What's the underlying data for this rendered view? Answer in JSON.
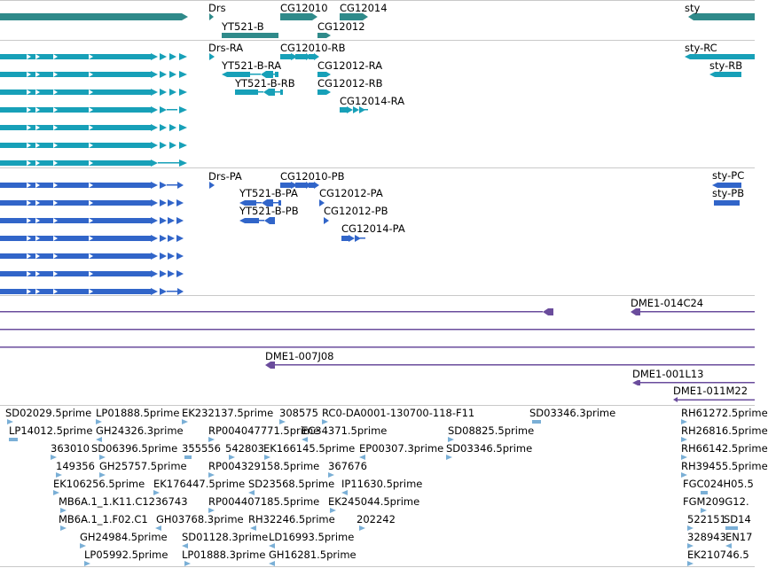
{
  "colors": {
    "gene": "#2f8a8a",
    "mrna": "#17a0b8",
    "protein": "#3165c9",
    "clone": "#6a4c9c",
    "est": "#7aafd6"
  },
  "genes": [
    "Drs",
    "YT521-B",
    "CG12010",
    "CG12012",
    "CG12014",
    "sty"
  ],
  "mrnas": [
    "Drs-RA",
    "YT521-B-RA",
    "YT521-B-RB",
    "CG12010-RB",
    "CG12012-RA",
    "CG12012-RB",
    "CG12014-RA",
    "sty-RC",
    "sty-RB"
  ],
  "proteins": [
    "Drs-PA",
    "YT521-B-PA",
    "YT521-B-PB",
    "CG12010-PB",
    "CG12012-PA",
    "CG12012-PB",
    "CG12014-PA",
    "sty-PC",
    "sty-PB"
  ],
  "clones": [
    "DME1-014C24",
    "DME1-007J08",
    "DME1-001L13",
    "DME1-011M22"
  ],
  "ests": [
    "SD02029.5prime",
    "LP01888.5prime",
    "EK232137.5prime",
    "308575",
    "RC0-DA0001-130700-118-F11",
    "SD03346.3prime",
    "RH61272.5prime",
    "LP14012.5prime",
    "GH24326.3prime",
    "RP004047771.5prime",
    "EC34371.5prime",
    "SD08825.5prime",
    "RH26816.5prime",
    "363010",
    "SD06396.5prime",
    "355556",
    "542803",
    "EK166145.5prime",
    "EP00307.3prime",
    "SD03346.5prime",
    "RH66142.5prime",
    "149356",
    "GH25757.5prime",
    "RP004329158.5prime",
    "367676",
    "RH39455.5prime",
    "EK106256.5prime",
    "EK176447.5prime",
    "SD23568.5prime",
    "IP11630.5prime",
    "FGC024H05.5",
    "MB6A.1_1.K11.C1236743",
    "RP004407185.5prime",
    "EK245044.5prime",
    "FGM209G12.",
    "MB6A.1_1.F02.C1",
    "GH03768.3prime",
    "RH32246.5prime",
    "202242",
    "522151",
    "SD14",
    "GH24984.5prime",
    "SD01128.3prime",
    "LD16993.5prime",
    "328943",
    "EN17",
    "LP05992.5prime",
    "LP01888.3prime",
    "GH16281.5prime",
    "EK210746.5"
  ]
}
